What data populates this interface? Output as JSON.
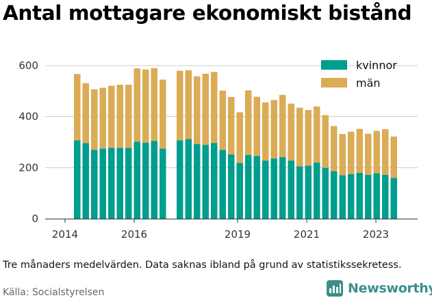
{
  "chart_data": {
    "type": "bar",
    "stacked": true,
    "title": "Antal mottagare ekonomiskt bistånd",
    "ylim": [
      0,
      650
    ],
    "y_ticks": [
      0,
      200,
      400,
      600
    ],
    "x_ticks": [
      "2014",
      "2016",
      "2019",
      "2021",
      "2023"
    ],
    "grid": "horizontal",
    "legend": "top-right",
    "series": [
      {
        "name": "kvinnor",
        "color": "#009e8e",
        "values": [
          307,
          296,
          270,
          275,
          278,
          278,
          277,
          302,
          298,
          305,
          275,
          null,
          307,
          312,
          293,
          290,
          297,
          270,
          252,
          219,
          250,
          246,
          228,
          236,
          241,
          228,
          205,
          208,
          220,
          199,
          186,
          170,
          175,
          180,
          172,
          178,
          172,
          160
        ]
      },
      {
        "name": "män",
        "color": "#dbab55",
        "values": [
          260,
          235,
          237,
          238,
          243,
          247,
          248,
          287,
          287,
          285,
          270,
          null,
          273,
          270,
          265,
          278,
          278,
          232,
          225,
          198,
          253,
          232,
          228,
          229,
          244,
          223,
          230,
          218,
          220,
          207,
          177,
          162,
          166,
          172,
          161,
          166,
          179,
          162
        ]
      }
    ]
  },
  "note": "Tre månaders medelvärden. Data saknas ibland på grund av statistikssekretess.",
  "source": "Källa: Socialstyrelsen",
  "brand": "Newsworthy",
  "colors": {
    "accent": "#3b8f8a",
    "grid": "#cccccc"
  }
}
